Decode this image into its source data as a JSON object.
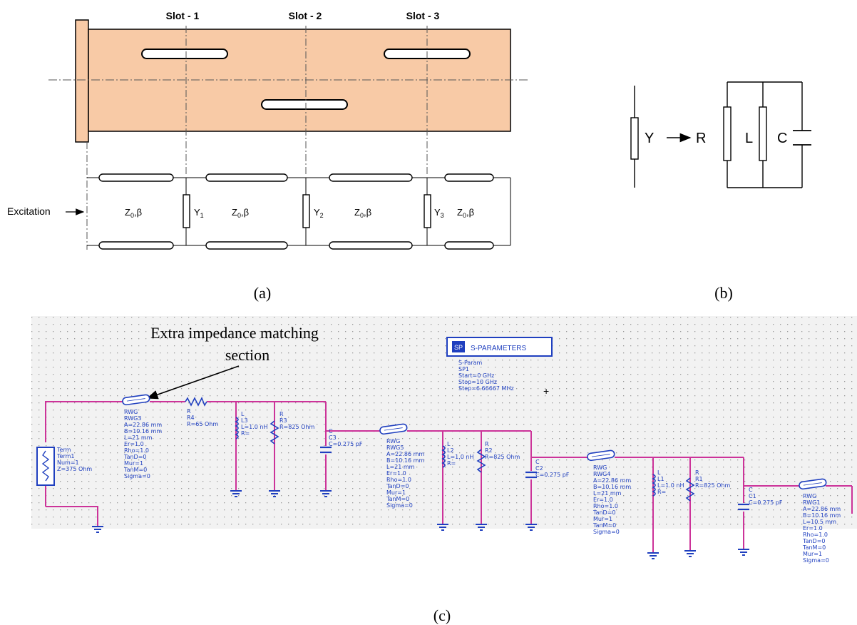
{
  "panel_a": {
    "caption": "(a)",
    "slot1": "Slot - 1",
    "slot2": "Slot - 2",
    "slot3": "Slot - 3",
    "excitation": "Excitation",
    "z_beta": "Z",
    "z_sub": "0",
    "z_tail": ",β",
    "y1": "Y",
    "y1_sub": "1",
    "y2": "Y",
    "y2_sub": "2",
    "y3": "Y",
    "y3_sub": "3",
    "waveguide_color": "#f8caa6"
  },
  "panel_b": {
    "caption": "(b)",
    "y": "Y",
    "r": "R",
    "l": "L",
    "c": "C"
  },
  "panel_c": {
    "caption": "(c)",
    "annotation_line1": "Extra impedance matching",
    "annotation_line2": "section",
    "sparam_title": "S-PARAMETERS",
    "sparam_lines": [
      "S-Param",
      "SP1",
      "Start=0 GHz",
      "Stop=10 GHz",
      "Step=6.66667 MHz"
    ],
    "term_lines": [
      "Term",
      "Term1",
      "Num=1",
      "Z=375 Ohm"
    ],
    "rwg3_lines": [
      "RWG",
      "RWG3",
      "A=22.86 mm",
      "B=10.16 mm",
      "L=21 mm",
      "Er=1.0",
      "Rho=1.0",
      "TanD=0",
      "Mur=1",
      "TanM=0",
      "Sigma=0"
    ],
    "r4_lines": [
      "R",
      "R4",
      "R=65 Ohm"
    ],
    "l3_lines": [
      "L",
      "L3",
      "L=1.0 nH",
      "R="
    ],
    "r3_lines": [
      "R",
      "R3",
      "R=825 Ohm"
    ],
    "c3_lines": [
      "C",
      "C3",
      "C=0.275 pF"
    ],
    "rwg5_lines": [
      "RWG",
      "RWG5",
      "A=22.86 mm",
      "B=10.16 mm",
      "L=21 mm",
      "Er=1.0",
      "Rho=1.0",
      "TanD=0",
      "Mur=1",
      "TanM=0",
      "Sigma=0"
    ],
    "l2_lines": [
      "L",
      "L2",
      "L=1.0 nH",
      "R="
    ],
    "r2_lines": [
      "R",
      "R2",
      "R=825 Ohm"
    ],
    "c2_lines": [
      "C",
      "C2",
      "C=0.275 pF"
    ],
    "rwg4_lines": [
      "RWG",
      "RWG4",
      "A=22.86 mm",
      "B=10.16 mm",
      "L=21 mm",
      "Er=1.0",
      "Rho=1.0",
      "TanD=0",
      "Mur=1",
      "TanM=0",
      "Sigma=0"
    ],
    "l1_lines": [
      "L",
      "L1",
      "L=1.0 nH",
      "R="
    ],
    "r1_lines": [
      "R",
      "R1",
      "R=825 Ohm"
    ],
    "c1_lines": [
      "C",
      "C1",
      "C=0.275 pF"
    ],
    "rwg1_lines": [
      "RWG",
      "RWG1",
      "A=22.86 mm",
      "B=10.16 mm",
      "L=10.5 mm",
      "Er=1.0",
      "Rho=1.0",
      "TanD=0",
      "TanM=0",
      "Mur=1",
      "Sigma=0"
    ],
    "wire_color": "#cc3399",
    "text_color": "#1f3fbf",
    "canvas_color": "#f2f2f2"
  }
}
